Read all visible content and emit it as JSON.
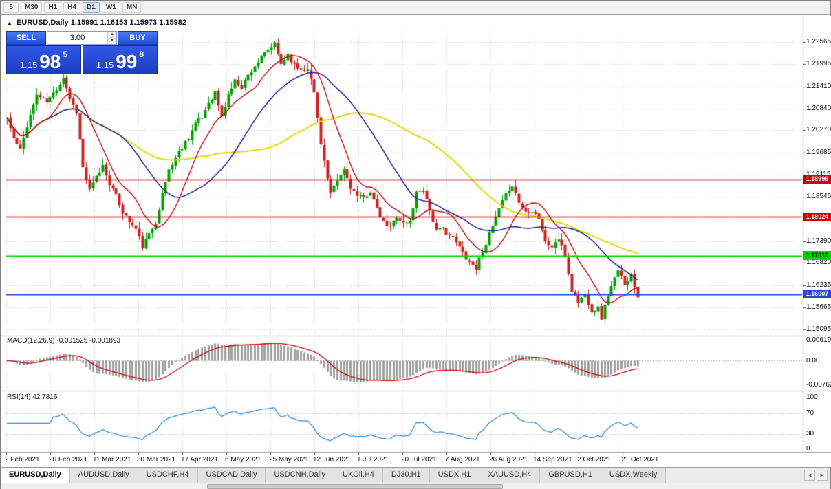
{
  "toolbar": {
    "timeframes": [
      {
        "label": "5",
        "active": false
      },
      {
        "label": "M30",
        "active": false
      },
      {
        "label": "H1",
        "active": false
      },
      {
        "label": "H4",
        "active": false
      },
      {
        "label": "D1",
        "active": true
      },
      {
        "label": "W1",
        "active": false
      },
      {
        "label": "MN",
        "active": false
      }
    ]
  },
  "chart": {
    "title": "EURUSD,Daily 1.15991 1.16153 1.15973 1.15982"
  },
  "ui": {
    "collapse_icon": "▲",
    "lot_up": "▲",
    "lot_down": "▼",
    "tab_scroll_left": "◄",
    "tab_scroll_right": "►"
  },
  "trade_panel": {
    "sell_label": "SELL",
    "buy_label": "BUY",
    "lot_size": "3.00",
    "sell_price": {
      "prefix": "1.15",
      "big": "98",
      "sup": "5"
    },
    "buy_price": {
      "prefix": "1.15",
      "big": "99",
      "sup": "8"
    }
  },
  "indicators": {
    "macd_label": "MACD(12,26,9) -0.001525 -0.001893",
    "rsi_label": "RSI(14) 42.7816",
    "macd_axis": [
      "0.006195",
      "0.00",
      "-0.00762"
    ],
    "rsi_axis": [
      "100",
      "70",
      "30",
      "0"
    ]
  },
  "tabs": {
    "items": [
      {
        "label": "EURUSD,Daily",
        "active": true
      },
      {
        "label": "AUDUSD,Daily",
        "active": false
      },
      {
        "label": "USDCHF,H4",
        "active": false
      },
      {
        "label": "USDCAD,Daily",
        "active": false
      },
      {
        "label": "USDCNH,Daily",
        "active": false
      },
      {
        "label": "UKOil,H4",
        "active": false
      },
      {
        "label": "DJ30,H1",
        "active": false
      },
      {
        "label": "USDX,H1",
        "active": false
      },
      {
        "label": "XAUUSD,H4",
        "active": false
      },
      {
        "label": "GBPUSD,H1",
        "active": false
      },
      {
        "label": "USDX,Weekly",
        "active": false
      }
    ]
  },
  "chart_data": {
    "type": "candlestick",
    "symbol": "EURUSD",
    "timeframe": "Daily",
    "ohlc_label": {
      "open": "1.15991",
      "high": "1.16153",
      "low": "1.15973",
      "close": "1.15982"
    },
    "x_axis": {
      "labels": [
        "2 Feb 2021",
        "20 Feb 2021",
        "11 Mar 2021",
        "30 Mar 2021",
        "17 Apr 2021",
        "6 May 2021",
        "25 May 2021",
        "12 Jun 2021",
        "1 Jul 2021",
        "20 Jul 2021",
        "7 Aug 2021",
        "26 Aug 2021",
        "14 Sep 2021",
        "2 Oct 2021",
        "21 Oct 2021"
      ]
    },
    "y_axis": {
      "ticks": [
        "1.22565",
        "1.21995",
        "1.21410",
        "1.20840",
        "1.20270",
        "1.19685",
        "1.19115",
        "1.18545",
        "1.17390",
        "1.16820",
        "1.16235",
        "1.15665",
        "1.15095"
      ],
      "hidden_ticks": [
        "1.17975"
      ]
    },
    "hlines": [
      {
        "price": 1.18998,
        "label": "1.18998",
        "color": "#c40000",
        "text_color": "#ffffff",
        "width": 1.5
      },
      {
        "price": 1.18024,
        "label": "1.18024",
        "color": "#c40000",
        "text_color": "#ffffff",
        "width": 1.5
      },
      {
        "price": 1.1701,
        "label": "1.17010",
        "color": "#00d400",
        "text_color": "#000000",
        "width": 1.8
      },
      {
        "price": 1.16007,
        "label": "1.16007",
        "color": "#2946cc",
        "text_color": "#ffffff",
        "width": 1.8
      }
    ],
    "moving_averages": [
      {
        "period": 60,
        "color": "#e6d800",
        "width": 2
      },
      {
        "period": 30,
        "color": "#1a1a99",
        "width": 1.5
      },
      {
        "period": 12,
        "color": "#cc0000",
        "width": 1.4
      }
    ],
    "macd": {
      "fast": 12,
      "slow": 26,
      "signal": 9,
      "value": -0.001525,
      "signal_value": -0.001893,
      "hist_color": "#a0a0a0",
      "line_color": "#cc0000"
    },
    "rsi": {
      "period": 14,
      "value": 42.7816,
      "color": "#2e8fd5",
      "levels": [
        70,
        30
      ]
    },
    "candles": {
      "count": 192,
      "seed": 11,
      "noise": 0.0013,
      "wick": 0.0018,
      "up_color": "#00a000",
      "down_color": "#cc2020",
      "anchors": [
        [
          0,
          1.206
        ],
        [
          2,
          1.2005
        ],
        [
          4,
          1.1975
        ],
        [
          6,
          1.204
        ],
        [
          9,
          1.212
        ],
        [
          12,
          1.21
        ],
        [
          15,
          1.2135
        ],
        [
          17,
          1.2165
        ],
        [
          19,
          1.211
        ],
        [
          21,
          1.2075
        ],
        [
          23,
          1.193
        ],
        [
          25,
          1.187
        ],
        [
          27,
          1.1905
        ],
        [
          29,
          1.1935
        ],
        [
          31,
          1.189
        ],
        [
          33,
          1.1855
        ],
        [
          35,
          1.1815
        ],
        [
          37,
          1.179
        ],
        [
          39,
          1.177
        ],
        [
          41,
          1.1725
        ],
        [
          43,
          1.1755
        ],
        [
          45,
          1.179
        ],
        [
          47,
          1.186
        ],
        [
          49,
          1.1925
        ],
        [
          51,
          1.1955
        ],
        [
          53,
          1.1985
        ],
        [
          55,
          1.201
        ],
        [
          57,
          1.2045
        ],
        [
          59,
          1.206
        ],
        [
          61,
          1.21
        ],
        [
          63,
          1.2125
        ],
        [
          65,
          1.206
        ],
        [
          67,
          1.212
        ],
        [
          69,
          1.2155
        ],
        [
          71,
          1.214
        ],
        [
          73,
          1.217
        ],
        [
          75,
          1.2195
        ],
        [
          77,
          1.2215
        ],
        [
          79,
          1.2235
        ],
        [
          81,
          1.225
        ],
        [
          83,
          1.22
        ],
        [
          85,
          1.2225
        ],
        [
          87,
          1.2195
        ],
        [
          89,
          1.2185
        ],
        [
          91,
          1.219
        ],
        [
          93,
          1.2125
        ],
        [
          95,
          1.1995
        ],
        [
          97,
          1.19
        ],
        [
          98,
          1.186
        ],
        [
          100,
          1.1895
        ],
        [
          102,
          1.1925
        ],
        [
          104,
          1.188
        ],
        [
          106,
          1.1855
        ],
        [
          108,
          1.185
        ],
        [
          110,
          1.187
        ],
        [
          112,
          1.182
        ],
        [
          114,
          1.1785
        ],
        [
          116,
          1.1775
        ],
        [
          118,
          1.1805
        ],
        [
          120,
          1.1785
        ],
        [
          122,
          1.179
        ],
        [
          124,
          1.1865
        ],
        [
          126,
          1.1875
        ],
        [
          128,
          1.182
        ],
        [
          130,
          1.1765
        ],
        [
          132,
          1.177
        ],
        [
          134,
          1.1755
        ],
        [
          136,
          1.1735
        ],
        [
          138,
          1.171
        ],
        [
          140,
          1.1685
        ],
        [
          142,
          1.167
        ],
        [
          144,
          1.1715
        ],
        [
          146,
          1.1755
        ],
        [
          148,
          1.18
        ],
        [
          150,
          1.184
        ],
        [
          152,
          1.1875
        ],
        [
          153,
          1.1885
        ],
        [
          155,
          1.184
        ],
        [
          157,
          1.1815
        ],
        [
          159,
          1.182
        ],
        [
          161,
          1.18
        ],
        [
          163,
          1.1735
        ],
        [
          165,
          1.1725
        ],
        [
          167,
          1.1745
        ],
        [
          169,
          1.17
        ],
        [
          171,
          1.161
        ],
        [
          173,
          1.158
        ],
        [
          175,
          1.16
        ],
        [
          177,
          1.156
        ],
        [
          179,
          1.1565
        ],
        [
          180,
          1.154
        ],
        [
          182,
          1.16
        ],
        [
          184,
          1.164
        ],
        [
          185,
          1.166
        ],
        [
          187,
          1.163
        ],
        [
          189,
          1.165
        ],
        [
          191,
          1.1598
        ]
      ]
    }
  }
}
